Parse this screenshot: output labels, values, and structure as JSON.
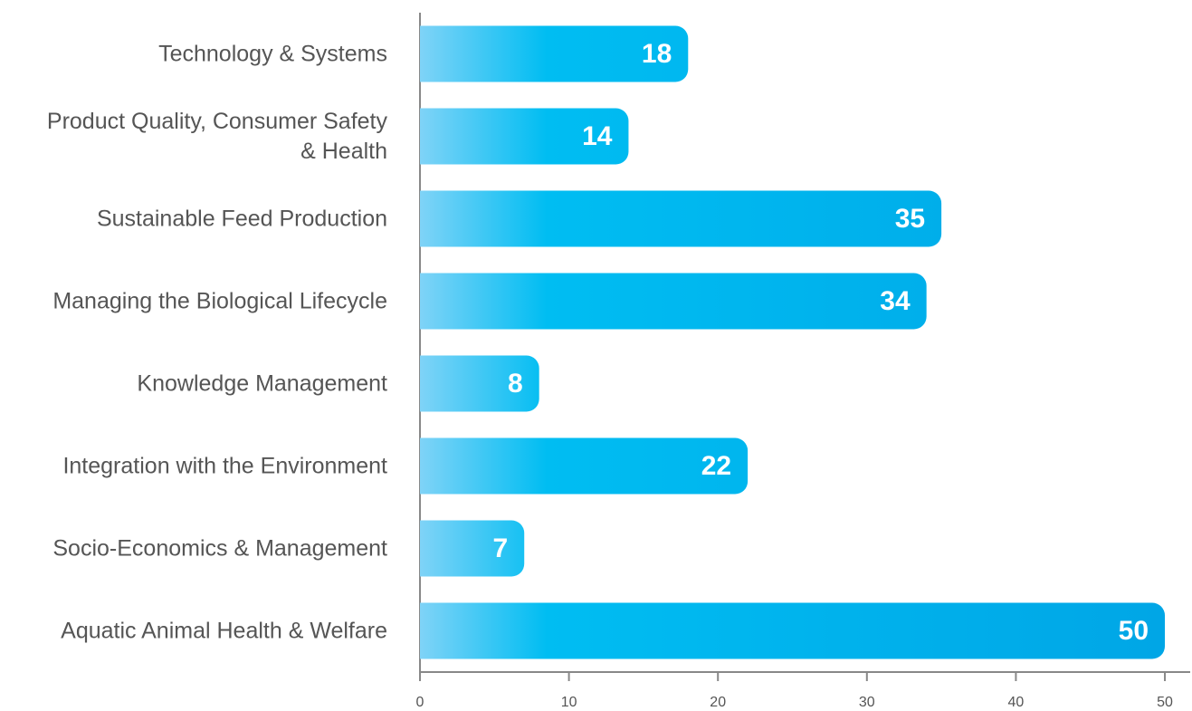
{
  "chart_data": {
    "type": "bar",
    "orientation": "horizontal",
    "categories": [
      "Technology & Systems",
      "Product Quality, Consumer Safety & Health",
      "Sustainable Feed Production",
      "Managing the Biological Lifecycle",
      "Knowledge Management",
      "Integration with the Environment",
      "Socio-Economics & Management",
      "Aquatic Animal Health & Welfare"
    ],
    "values": [
      18,
      14,
      35,
      34,
      8,
      22,
      7,
      50
    ],
    "colors": [
      "#7fd3f7",
      "#00bdf2",
      "#00a6e6"
    ],
    "xlim": [
      0,
      51.7
    ],
    "xticks": [
      0,
      10,
      20,
      30,
      40,
      50
    ]
  }
}
